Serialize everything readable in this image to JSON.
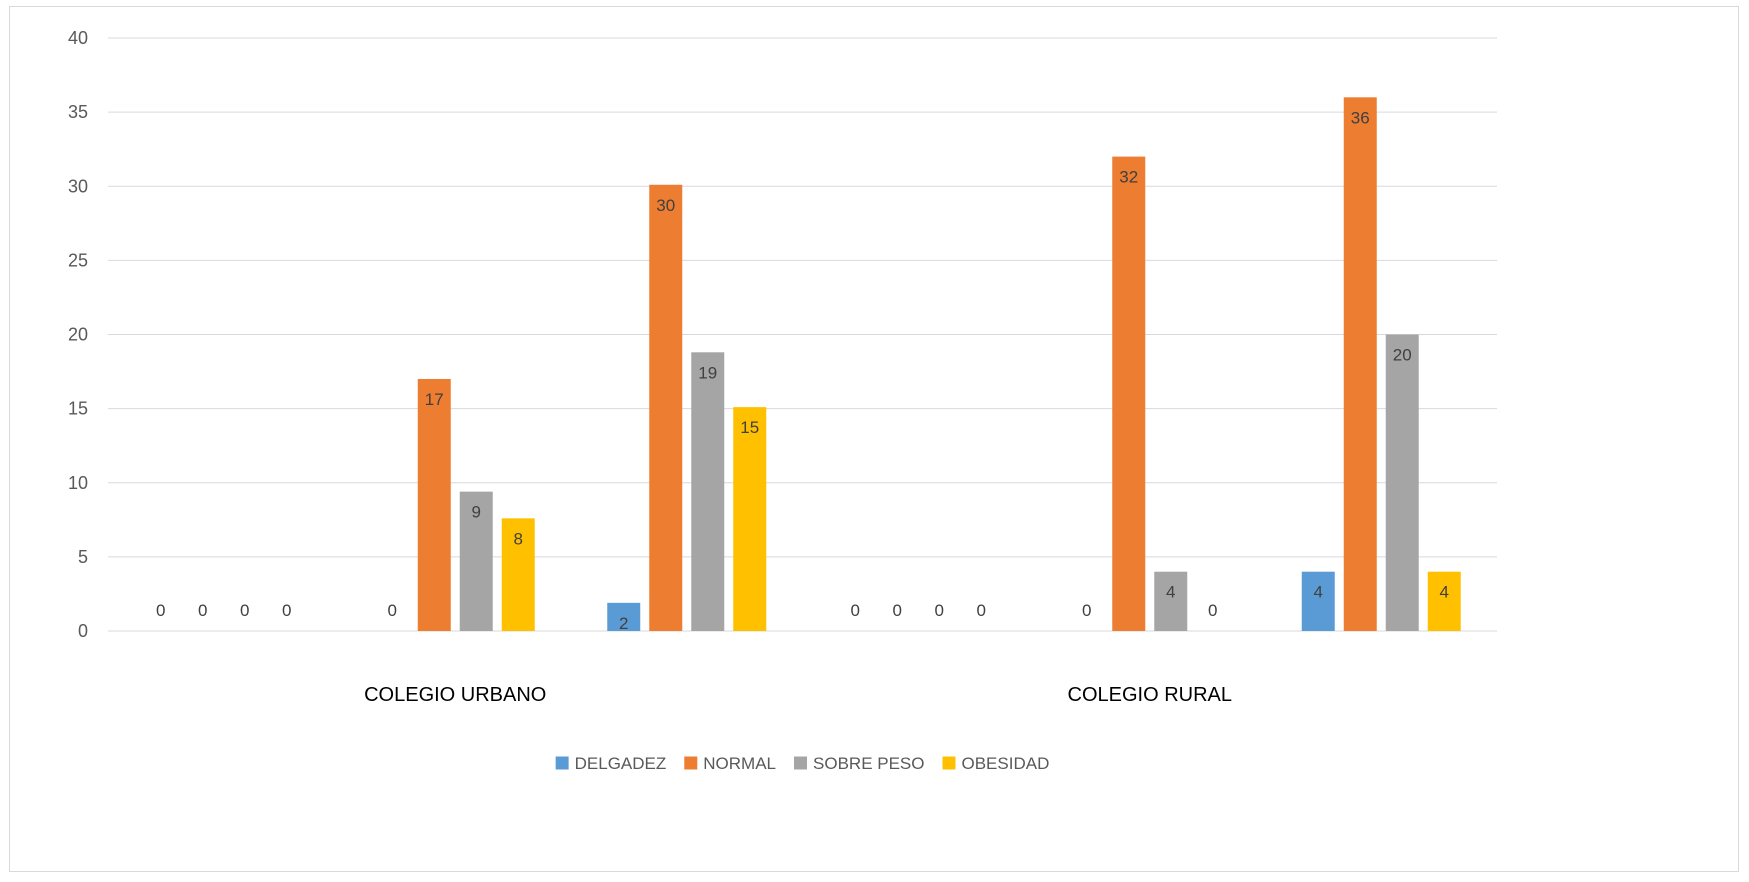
{
  "chart_data": {
    "type": "bar",
    "title": "",
    "xlabel": "",
    "ylabel": "",
    "ylim": [
      0,
      40
    ],
    "yticks": [
      0,
      5,
      10,
      15,
      20,
      25,
      30,
      35,
      40
    ],
    "grid": true,
    "legend_position": "bottom",
    "groups": [
      {
        "label": "COLEGIO URBANO",
        "subgroups": [
          {
            "values": [
              0,
              0,
              0,
              0
            ]
          },
          {
            "values": [
              0,
              17,
              9.4,
              7.6
            ],
            "labels": [
              "0",
              "17",
              "9",
              "8"
            ]
          },
          {
            "values": [
              1.9,
              30.1,
              18.8,
              15.1
            ],
            "labels": [
              "2",
              "30",
              "19",
              "15"
            ]
          }
        ]
      },
      {
        "label": "COLEGIO RURAL",
        "subgroups": [
          {
            "values": [
              0,
              0,
              0,
              0
            ]
          },
          {
            "values": [
              0,
              32,
              4,
              0
            ]
          },
          {
            "values": [
              4,
              36,
              20,
              4
            ]
          }
        ]
      }
    ],
    "series": [
      {
        "name": "DELGADEZ",
        "color": "#5b9bd5"
      },
      {
        "name": "NORMAL",
        "color": "#ed7d31"
      },
      {
        "name": "SOBRE PESO",
        "color": "#a5a5a5"
      },
      {
        "name": "OBESIDAD",
        "color": "#ffc000"
      }
    ]
  }
}
